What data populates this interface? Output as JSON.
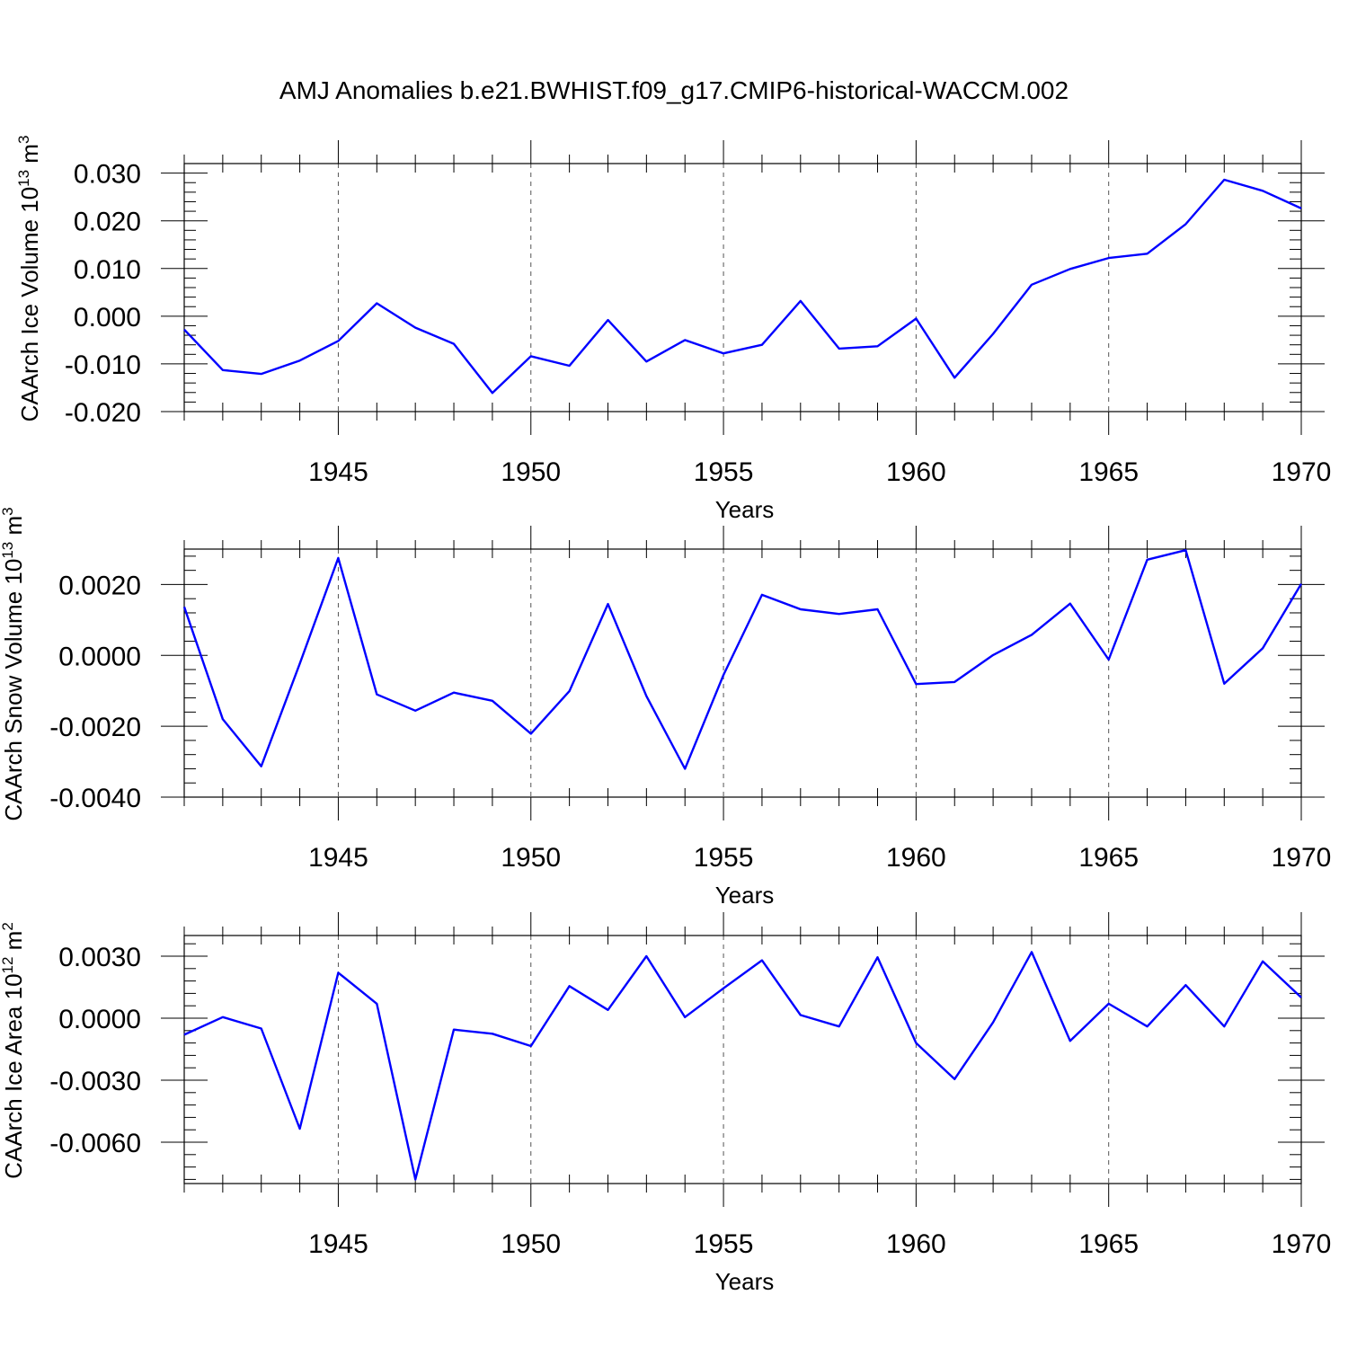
{
  "figure": {
    "title": "AMJ Anomalies b.e21.BWHIST.f09_g17.CMIP6-historical-WACCM.002"
  },
  "colors": {
    "line": "#0000ff",
    "axis": "#000000",
    "grid": "#555555",
    "background": "#ffffff"
  },
  "chart_data": [
    {
      "type": "line",
      "name": "ice-volume",
      "title": "AMJ Anomalies b.e21.BWHIST.f09_g17.CMIP6-historical-WACCM.002",
      "xlabel": "Years",
      "ylabel": "CAArch Ice Volume 10",
      "ylabel_exp": "13",
      "ylabel_unit": " m",
      "ylabel_unit_exp": "3",
      "xlim": [
        1941,
        1970
      ],
      "ylim": [
        -0.02,
        0.032
      ],
      "xticks": [
        1945,
        1950,
        1955,
        1960,
        1965,
        1970
      ],
      "yticks": [
        -0.02,
        -0.01,
        0.0,
        0.01,
        0.02,
        0.03
      ],
      "ytick_labels": [
        "-0.020",
        "-0.010",
        "0.000",
        "0.010",
        "0.020",
        "0.030"
      ],
      "x": [
        1941,
        1942,
        1943,
        1944,
        1945,
        1946,
        1947,
        1948,
        1949,
        1950,
        1951,
        1952,
        1953,
        1954,
        1955,
        1956,
        1957,
        1958,
        1959,
        1960,
        1961,
        1962,
        1963,
        1964,
        1965,
        1966,
        1967,
        1968,
        1969,
        1970
      ],
      "values": [
        -0.0028,
        -0.0113,
        -0.0121,
        -0.0093,
        -0.0052,
        0.0027,
        -0.0024,
        -0.0058,
        -0.0161,
        -0.0084,
        -0.0104,
        -0.0008,
        -0.0095,
        -0.005,
        -0.0078,
        -0.006,
        0.0032,
        -0.0068,
        -0.0063,
        -0.0005,
        -0.0129,
        -0.0037,
        0.0066,
        0.0099,
        0.0122,
        0.0131,
        0.0193,
        0.0286,
        0.0263,
        0.0226
      ]
    },
    {
      "type": "line",
      "name": "snow-volume",
      "xlabel": "Years",
      "ylabel": "CAArch Snow Volume 10",
      "ylabel_exp": "13",
      "ylabel_unit": " m",
      "ylabel_unit_exp": "3",
      "xlim": [
        1941,
        1970
      ],
      "ylim": [
        -0.004,
        0.003
      ],
      "xticks": [
        1945,
        1950,
        1955,
        1960,
        1965,
        1970
      ],
      "yticks": [
        -0.004,
        -0.002,
        0.0,
        0.002
      ],
      "ytick_labels": [
        "-0.0040",
        "-0.0020",
        "0.0000",
        "0.0020"
      ],
      "x": [
        1941,
        1942,
        1943,
        1944,
        1945,
        1946,
        1947,
        1948,
        1949,
        1950,
        1951,
        1952,
        1953,
        1954,
        1955,
        1956,
        1957,
        1958,
        1959,
        1960,
        1961,
        1962,
        1963,
        1964,
        1965,
        1966,
        1967,
        1968,
        1969,
        1970
      ],
      "values": [
        0.00137,
        -0.0018,
        -0.00313,
        -0.00023,
        0.00275,
        -0.0011,
        -0.00156,
        -0.00105,
        -0.00128,
        -0.00221,
        -0.00101,
        0.00145,
        -0.00115,
        -0.0032,
        -0.00055,
        0.00171,
        0.0013,
        0.00117,
        0.0013,
        -0.00081,
        -0.00075,
        1e-05,
        0.00058,
        0.00146,
        -0.00012,
        0.0027,
        0.00297,
        -0.0008,
        0.0002,
        0.00202
      ]
    },
    {
      "type": "line",
      "name": "ice-area",
      "xlabel": "Years",
      "ylabel": "CAArch Ice Area 10",
      "ylabel_exp": "12",
      "ylabel_unit": " m",
      "ylabel_unit_exp": "2",
      "xlim": [
        1941,
        1970
      ],
      "ylim": [
        -0.008,
        0.004
      ],
      "xticks": [
        1945,
        1950,
        1955,
        1960,
        1965,
        1970
      ],
      "yticks": [
        -0.006,
        -0.003,
        0.0,
        0.003
      ],
      "ytick_labels": [
        "-0.0060",
        "-0.0030",
        "0.0000",
        "0.0030"
      ],
      "x": [
        1941,
        1942,
        1943,
        1944,
        1945,
        1946,
        1947,
        1948,
        1949,
        1950,
        1951,
        1952,
        1953,
        1954,
        1955,
        1956,
        1957,
        1958,
        1959,
        1960,
        1961,
        1962,
        1963,
        1964,
        1965,
        1966,
        1967,
        1968,
        1969,
        1970
      ],
      "values": [
        -0.0008,
        5e-05,
        -0.0005,
        -0.00535,
        0.0022,
        0.0007,
        -0.0078,
        -0.00055,
        -0.00075,
        -0.00135,
        0.00155,
        0.0004,
        0.003,
        5e-05,
        0.00145,
        0.0028,
        0.00015,
        -0.0004,
        0.00295,
        -0.0012,
        -0.00295,
        -0.0002,
        0.0032,
        -0.0011,
        0.0007,
        -0.0004,
        0.0016,
        -0.0004,
        0.00275,
        0.001
      ]
    }
  ]
}
